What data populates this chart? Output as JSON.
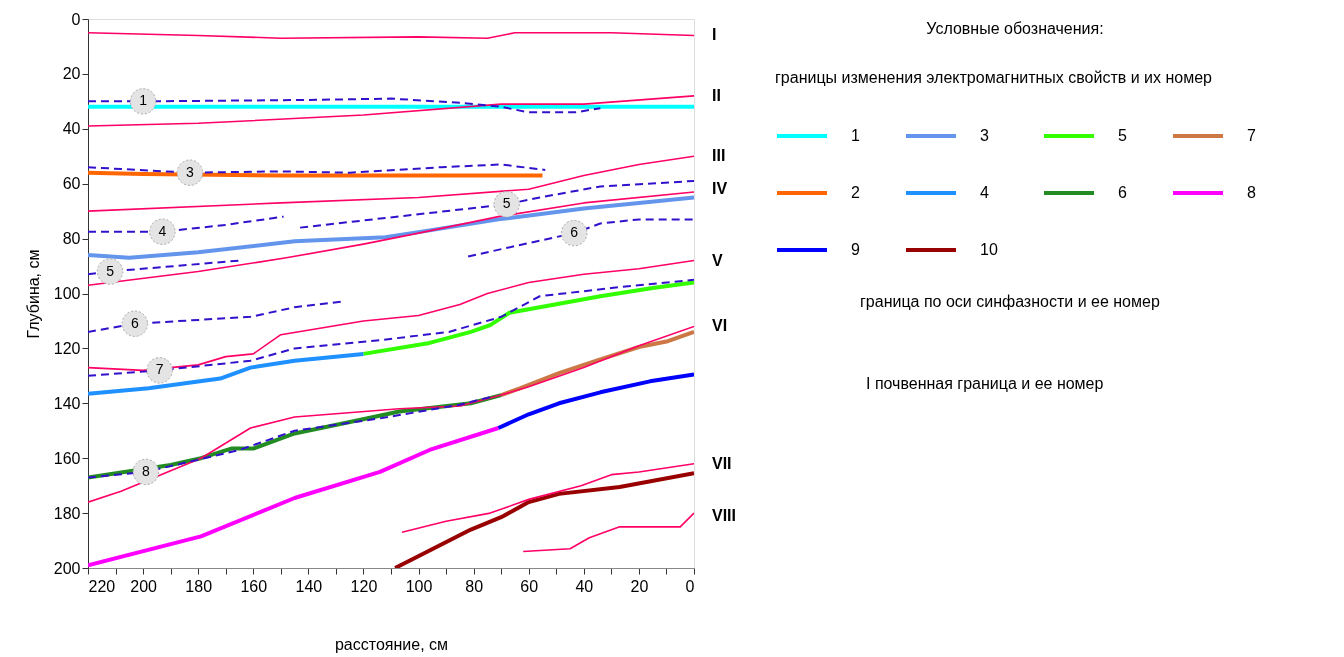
{
  "chart_data": {
    "type": "line",
    "xlabel": "расстояние, см",
    "ylabel": "Глубина, см",
    "legend_title": "Условные обозначения:",
    "legend": "top right",
    "grid": false,
    "xlim": [
      220,
      0
    ],
    "ylim": [
      200,
      0
    ],
    "xticks": [
      220,
      {
        "value": 210,
        "label": null
      },
      200,
      {
        "value": 190,
        "label": null
      },
      180,
      {
        "value": 170,
        "label": null
      },
      160,
      {
        "value": 150,
        "label": null
      },
      140,
      {
        "value": 130,
        "label": null
      },
      120,
      {
        "value": 110,
        "label": null
      },
      100,
      {
        "value": 90,
        "label": null
      },
      80,
      {
        "value": 70,
        "label": null
      },
      60,
      {
        "value": 50,
        "label": null
      },
      40,
      {
        "value": 30,
        "label": null
      },
      20,
      {
        "value": 10,
        "label": null
      },
      0
    ],
    "yticks": [
      0,
      20,
      40,
      60,
      80,
      100,
      120,
      140,
      160,
      180,
      200
    ],
    "annotations": [
      "границы изменения электромагнитных свойств и их номер",
      "граница по оси синфазности и ее номер",
      "I почвенная граница и ее номер",
      {
        "text": "I",
        "x": 0,
        "y": 6
      },
      {
        "text": "II",
        "x": 0,
        "y": 28
      },
      {
        "text": "III",
        "x": 0,
        "y": 50
      },
      {
        "text": "IV",
        "x": 0,
        "y": 62
      },
      {
        "text": "V",
        "x": 0,
        "y": 88
      },
      {
        "text": "VI",
        "x": 0,
        "y": 112
      },
      {
        "text": "VII",
        "x": 0,
        "y": 162
      },
      {
        "text": "VIII",
        "x": 0,
        "y": 181
      },
      {
        "text": "1",
        "x": 200,
        "y": 30
      },
      {
        "text": "3",
        "x": 183,
        "y": 56
      },
      {
        "text": "4",
        "x": 193,
        "y": 77.5
      },
      {
        "text": "5",
        "x": 212,
        "y": 92
      },
      {
        "text": "5",
        "x": 68,
        "y": 67.5
      },
      {
        "text": "6",
        "x": 203,
        "y": 111
      },
      {
        "text": "6",
        "x": 43.5,
        "y": 78
      },
      {
        "text": "7",
        "x": 194,
        "y": 128
      },
      {
        "text": "8",
        "x": 199,
        "y": 165
      }
    ],
    "series": [
      {
        "color": "#ff0066",
        "line_style": "solid",
        "x": [
          220,
          180,
          150,
          100,
          75,
          65,
          30,
          0
        ],
        "values": [
          5,
          6,
          7,
          6.5,
          7,
          5,
          5,
          6
        ]
      },
      {
        "color": "#ff0066",
        "line_style": "solid",
        "x": [
          220,
          180,
          120,
          70,
          40,
          0
        ],
        "values": [
          39,
          38,
          35,
          31,
          31,
          28
        ]
      },
      {
        "color": "#ff0066",
        "line_style": "solid",
        "x": [
          220,
          150,
          100,
          60,
          40,
          20,
          0
        ],
        "values": [
          70,
          67,
          65,
          62,
          57,
          53,
          50
        ]
      },
      {
        "color": "#ff0066",
        "line_style": "solid",
        "x": [
          220,
          180,
          148,
          120,
          100,
          71,
          40,
          0
        ],
        "values": [
          97,
          92,
          87,
          82,
          78,
          72,
          67,
          63
        ]
      },
      {
        "color": "#ff0066",
        "line_style": "solid",
        "x": [
          220,
          200,
          180,
          170,
          160,
          150,
          120,
          100,
          85,
          75,
          60,
          40,
          20,
          0
        ],
        "values": [
          127,
          128,
          126,
          123,
          122,
          115,
          110,
          108,
          104,
          100,
          96,
          93,
          91,
          88
        ]
      },
      {
        "color": "#ff0066",
        "line_style": "solid",
        "x": [
          220,
          208,
          179,
          161,
          145,
          107,
          85,
          70,
          60,
          40,
          20,
          0
        ],
        "values": [
          176,
          172,
          160,
          149,
          145,
          142,
          141,
          137,
          134,
          127,
          119,
          112
        ]
      },
      {
        "color": "#ff0066",
        "line_style": "solid",
        "x": [
          106,
          90,
          74,
          60,
          41,
          30,
          20,
          0
        ],
        "values": [
          187,
          183,
          180,
          175,
          170,
          166,
          165,
          162
        ]
      },
      {
        "color": "#ff0066",
        "line_style": "solid",
        "x": [
          62,
          45,
          38,
          27,
          5,
          0
        ],
        "values": [
          194,
          193,
          189,
          185,
          185,
          180
        ]
      },
      {
        "color": "#3311cc",
        "line_style": "dashed",
        "x": [
          220,
          200,
          140,
          110,
          85,
          70,
          60,
          43,
          34
        ],
        "values": [
          30,
          30,
          29.5,
          29,
          30.5,
          32,
          34,
          34,
          32.5
        ]
      },
      {
        "color": "#3311cc",
        "line_style": "dashed",
        "x": [
          220,
          183,
          150,
          125,
          92,
          70,
          54
        ],
        "values": [
          54,
          56,
          55.5,
          56,
          54,
          53,
          55
        ]
      },
      {
        "color": "#3311cc",
        "line_style": "dashed",
        "x": [
          220,
          193,
          170,
          149
        ],
        "values": [
          77.5,
          77.5,
          75,
          72
        ]
      },
      {
        "color": "#3311cc",
        "line_style": "dashed",
        "x": [
          220,
          212,
          165
        ],
        "values": [
          93,
          92,
          88
        ]
      },
      {
        "color": "#3311cc",
        "line_style": "dashed",
        "x": [
          143,
          68,
          56,
          34,
          0
        ],
        "values": [
          76,
          67.5,
          65,
          61,
          59
        ]
      },
      {
        "color": "#3311cc",
        "line_style": "dashed",
        "x": [
          220,
          203,
          161,
          145,
          128
        ],
        "values": [
          114,
          111,
          108.5,
          105,
          103
        ]
      },
      {
        "color": "#3311cc",
        "line_style": "dashed",
        "x": [
          82,
          43.5,
          34,
          20,
          0
        ],
        "values": [
          86.5,
          78,
          74.5,
          73,
          73
        ]
      },
      {
        "color": "#3311cc",
        "line_style": "dashed",
        "x": [
          220,
          194,
          161,
          145,
          114,
          89,
          70,
          56,
          30,
          0
        ],
        "values": [
          130,
          128,
          124.5,
          120,
          117,
          114,
          108.5,
          101,
          98,
          95
        ]
      },
      {
        "color": "#3311cc",
        "line_style": "dashed",
        "x": [
          220,
          199,
          165,
          145,
          114,
          85,
          73
        ],
        "values": [
          167,
          165,
          157,
          150,
          145.5,
          140.5,
          137.5
        ]
      },
      {
        "name": "1",
        "color": "#00ffff",
        "line_style": "solid",
        "x": [
          220,
          0
        ],
        "values": [
          32,
          32
        ]
      },
      {
        "name": "3",
        "color": "#6495ed",
        "line_style": "solid",
        "x": [
          220,
          205,
          180,
          145,
          112,
          96,
          71,
          40,
          0
        ],
        "values": [
          86,
          87,
          85,
          81,
          79.5,
          77,
          73,
          69,
          65
        ]
      },
      {
        "name": "5",
        "color": "#33ff00",
        "line_style": "solid",
        "x": [
          120,
          96,
          81,
          74,
          67,
          56,
          34,
          15,
          0
        ],
        "values": [
          122,
          118,
          114,
          111.5,
          107,
          105,
          101,
          98,
          96
        ]
      },
      {
        "name": "7",
        "color": "#cc7744",
        "line_style": "solid",
        "x": [
          70,
          63,
          49,
          34,
          20,
          10,
          0
        ],
        "values": [
          137,
          134.5,
          129,
          124,
          119.5,
          117.5,
          114
        ]
      },
      {
        "name": "2",
        "color": "#ff6600",
        "line_style": "solid",
        "x": [
          220,
          200,
          150,
          100,
          55
        ],
        "values": [
          56,
          56.5,
          57,
          57,
          57
        ]
      },
      {
        "name": "4",
        "color": "#1e90ff",
        "line_style": "solid",
        "x": [
          220,
          198,
          172,
          161,
          145,
          120
        ],
        "values": [
          136.5,
          134.5,
          131,
          127,
          124.5,
          122
        ]
      },
      {
        "name": "6",
        "color": "#228b22",
        "line_style": "solid",
        "x": [
          220,
          190,
          179,
          168,
          160,
          145,
          121,
          107,
          81,
          70
        ],
        "values": [
          167,
          162.5,
          160,
          156.5,
          156.5,
          151,
          146,
          143,
          140,
          137
        ]
      },
      {
        "name": "8",
        "color": "#ff00ff",
        "line_style": "solid",
        "x": [
          220,
          179,
          145,
          114,
          96,
          71
        ],
        "values": [
          199,
          188.5,
          174.5,
          165,
          157,
          149
        ]
      },
      {
        "name": "9",
        "color": "#0000ff",
        "line_style": "solid",
        "x": [
          71,
          60,
          49,
          34,
          16,
          0
        ],
        "values": [
          149,
          144,
          140,
          136,
          132,
          129.5
        ]
      },
      {
        "name": "10",
        "color": "#990000",
        "line_style": "solid",
        "x": [
          108.5,
          81,
          70,
          60,
          49,
          27,
          0
        ],
        "values": [
          200,
          186,
          181.5,
          176,
          173,
          170.5,
          165.5
        ]
      }
    ]
  }
}
